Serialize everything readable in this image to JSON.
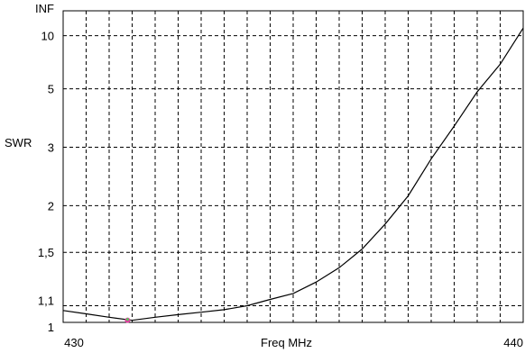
{
  "chart_data": {
    "type": "line",
    "title": "",
    "xlabel": "Freq MHz",
    "ylabel": "SWR",
    "xlim": [
      430,
      440
    ],
    "x_tick_labels": [
      {
        "x": 430,
        "label": "430"
      },
      {
        "x": 440,
        "label": "440"
      }
    ],
    "x_grid_count": 20,
    "y_tick_labels": [
      {
        "y": 1,
        "label": "1"
      },
      {
        "y": 1.1,
        "label": "1,1"
      },
      {
        "y": 1.5,
        "label": "1,5"
      },
      {
        "y": 2,
        "label": "2"
      },
      {
        "y": 3,
        "label": "3"
      },
      {
        "y": 5,
        "label": "5"
      },
      {
        "y": 10,
        "label": "10"
      },
      {
        "y": "INF",
        "label": "INF"
      }
    ],
    "y_scale": "reflection-coefficient",
    "grid": true,
    "grid_style": "dashed",
    "series": [
      {
        "color": "#000000",
        "x": [
          430.0,
          430.5,
          431.0,
          431.5,
          432.0,
          432.5,
          433.0,
          433.5,
          434.0,
          434.5,
          435.0,
          435.5,
          436.0,
          436.5,
          437.0,
          437.5,
          438.0,
          438.5,
          439.0,
          439.5,
          440.0
        ],
        "y": [
          1.07,
          1.05,
          1.03,
          1.012,
          1.03,
          1.045,
          1.06,
          1.075,
          1.1,
          1.14,
          1.18,
          1.26,
          1.37,
          1.53,
          1.78,
          2.13,
          2.75,
          3.55,
          4.85,
          6.6,
          11.5
        ]
      }
    ],
    "markers": [
      {
        "x": 431.4,
        "y": 1.012,
        "color": "#e040a0"
      }
    ]
  }
}
